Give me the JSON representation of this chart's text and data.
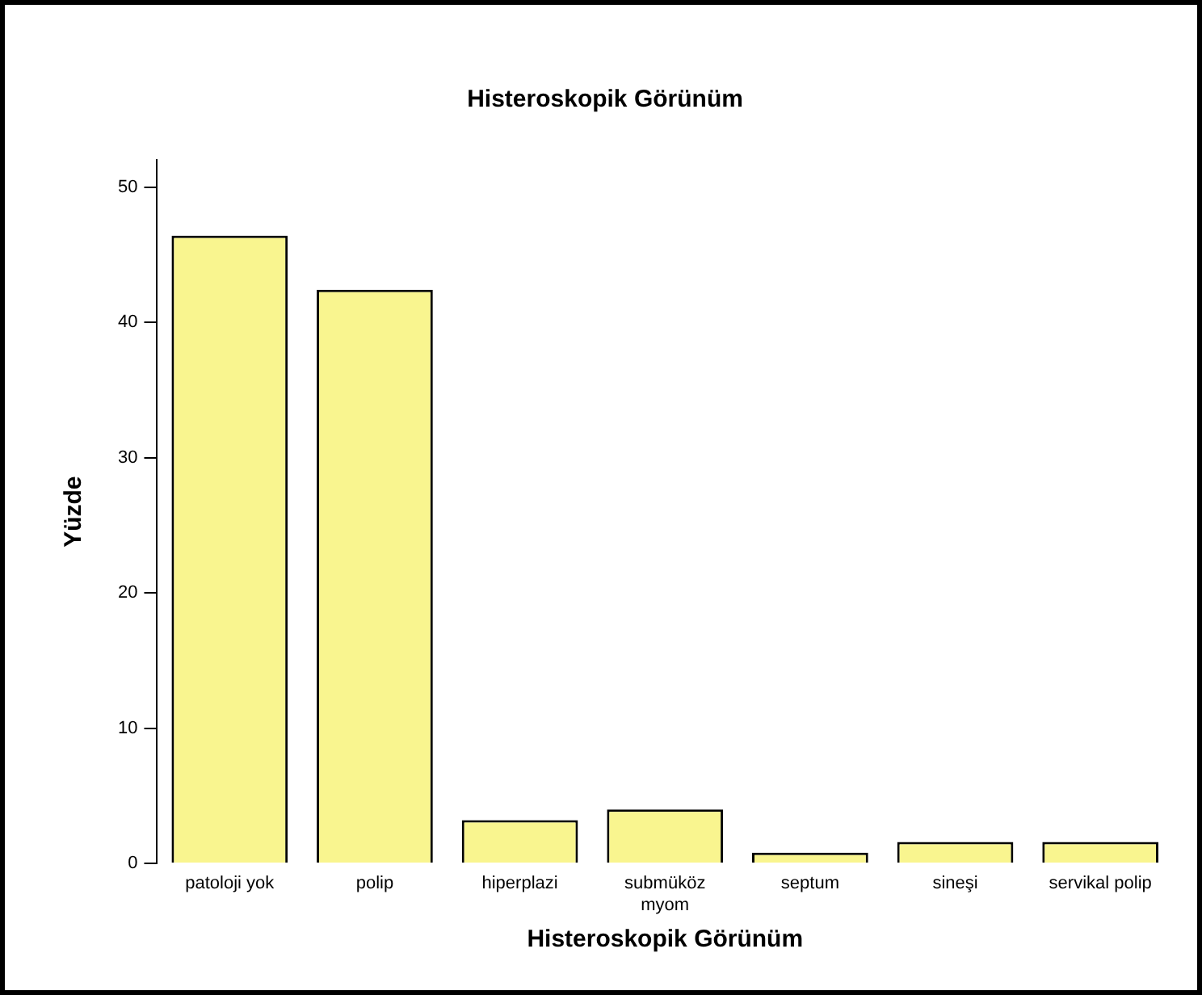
{
  "chart_data": {
    "type": "bar",
    "title": "Histeroskopik Görünüm",
    "xlabel": "Histeroskopik Görünüm",
    "ylabel": "Yüzde",
    "categories": [
      "patoloji yok",
      "polip",
      "hiperplazi",
      "submüköz myom",
      "septum",
      "sineşi",
      "servikal polip"
    ],
    "values": [
      46.4,
      42.4,
      3.2,
      4.0,
      0.8,
      1.6,
      1.6
    ],
    "color": "#f9f58f",
    "ylim": [
      0,
      52
    ],
    "yticks": [
      0,
      10,
      20,
      30,
      40,
      50
    ],
    "grid": false,
    "legend": false
  }
}
